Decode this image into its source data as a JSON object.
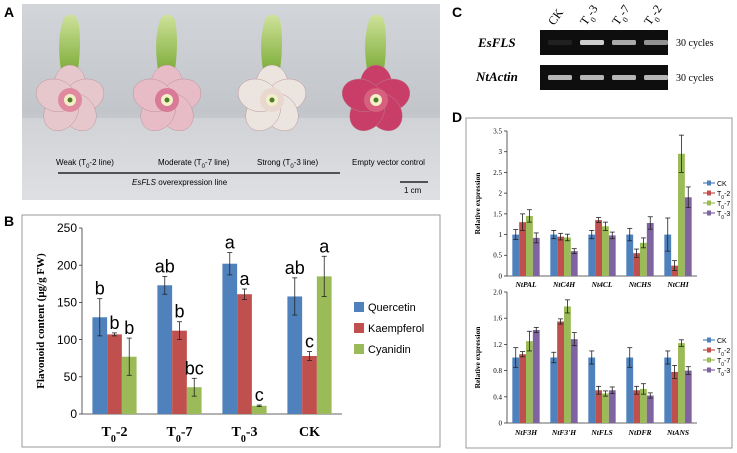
{
  "panel_labels": {
    "a": "A",
    "b": "B",
    "c": "C",
    "d": "D"
  },
  "panel_a": {
    "flowers": [
      {
        "label_pre": "Weak (T",
        "label_sub": "0",
        "label_post": "-2 line)",
        "fill": "#e6c8cc",
        "center": "#e08aa0"
      },
      {
        "label_pre": "Moderate (T",
        "label_sub": "0",
        "label_post": "-7 line)",
        "fill": "#e7bcc6",
        "center": "#d87a98"
      },
      {
        "label_pre": "Strong (T",
        "label_sub": "0",
        "label_post": "-3 line)",
        "fill": "#ece4de",
        "center": "#e9d8d0"
      },
      {
        "label_pre": "Empty vector control",
        "label_sub": "",
        "label_post": "",
        "fill": "#c83e68",
        "center": "#d7607f"
      }
    ],
    "line_caption_italic": "EsFLS",
    "line_caption_rest": " overexpression line",
    "scale_bar": "1 cm"
  },
  "panel_c": {
    "lanes": [
      {
        "pre": "CK",
        "sub": ""
      },
      {
        "pre": "T",
        "sub": "0",
        "post": "-3"
      },
      {
        "pre": "T",
        "sub": "0",
        "post": "-7"
      },
      {
        "pre": "T",
        "sub": "0",
        "post": "-2"
      }
    ],
    "rows": [
      {
        "gene": "EsFLS",
        "cycles": "30 cycles"
      },
      {
        "gene": "NtActin",
        "cycles": "30 cycles"
      }
    ]
  },
  "colors": {
    "blue": "#4f81bd",
    "red": "#c0504d",
    "green": "#9bbb59",
    "purple": "#8064a2"
  },
  "chart_data": [
    {
      "type": "bar",
      "panel": "B",
      "ylabel": "Flavonoid content (μg/g FW)",
      "ylim": [
        0,
        250
      ],
      "yticks": [
        0,
        50,
        100,
        150,
        200,
        250
      ],
      "categories": [
        {
          "pre": "T",
          "sub": "0",
          "post": "-2"
        },
        {
          "pre": "T",
          "sub": "0",
          "post": "-7"
        },
        {
          "pre": "T",
          "sub": "0",
          "post": "-3"
        },
        {
          "pre": "CK",
          "sub": "",
          "post": ""
        }
      ],
      "series": [
        {
          "name": "Quercetin",
          "color": "#4f81bd",
          "values": [
            130,
            173,
            202,
            158
          ],
          "errors": [
            25,
            12,
            15,
            25
          ],
          "letters": [
            "b",
            "ab",
            "a",
            "ab"
          ]
        },
        {
          "name": "Kaempferol",
          "color": "#c0504d",
          "values": [
            107,
            112,
            161,
            78
          ],
          "errors": [
            2,
            12,
            7,
            6
          ],
          "letters": [
            "b",
            "b",
            "a",
            "c"
          ]
        },
        {
          "name": "Cyanidin",
          "color": "#9bbb59",
          "values": [
            77,
            36,
            11,
            185
          ],
          "errors": [
            25,
            12,
            1,
            27
          ],
          "letters": [
            "b",
            "bc",
            "c",
            "a"
          ]
        }
      ],
      "legend_position": "right"
    },
    {
      "type": "bar",
      "panel": "D-top",
      "ylabel": "Relative expression",
      "ylim": [
        0,
        3.5
      ],
      "yticks": [
        "0",
        "0.5",
        "1",
        "1.5",
        "2",
        "2.5",
        "3",
        "3.5"
      ],
      "categories": [
        "NtPAL",
        "NtC4H",
        "Nt4CL",
        "NtCHS",
        "NtCHI"
      ],
      "series": [
        {
          "name": "CK",
          "color": "#4f81bd",
          "values": [
            1.0,
            1.0,
            1.0,
            1.0,
            1.0
          ],
          "errors": [
            0.12,
            0.1,
            0.1,
            0.15,
            0.4
          ]
        },
        {
          "name": "T0-2",
          "color": "#c0504d",
          "values": [
            1.3,
            0.95,
            1.35,
            0.55,
            0.25
          ],
          "errors": [
            0.2,
            0.08,
            0.06,
            0.1,
            0.12
          ]
        },
        {
          "name": "T0-7",
          "color": "#9bbb59",
          "values": [
            1.45,
            0.93,
            1.2,
            0.8,
            2.95
          ],
          "errors": [
            0.15,
            0.08,
            0.1,
            0.12,
            0.45
          ]
        },
        {
          "name": "T0-3",
          "color": "#8064a2",
          "values": [
            0.92,
            0.6,
            0.98,
            1.28,
            1.9
          ],
          "errors": [
            0.12,
            0.06,
            0.08,
            0.15,
            0.25
          ]
        }
      ],
      "legend": [
        {
          "pre": "CK",
          "sub": "",
          "post": ""
        },
        {
          "pre": "T",
          "sub": "0",
          "post": "-2"
        },
        {
          "pre": "T",
          "sub": "0",
          "post": "-7"
        },
        {
          "pre": "T",
          "sub": "0",
          "post": "-3"
        }
      ]
    },
    {
      "type": "bar",
      "panel": "D-bottom",
      "ylabel": "Relative expression",
      "ylim": [
        0,
        2.0
      ],
      "yticks": [
        "0",
        "0.4",
        "0.8",
        "1.2",
        "1.6",
        "2.0"
      ],
      "categories": [
        "NtF3H",
        "NtF3'H",
        "NtFLS",
        "NtDFR",
        "NtANS"
      ],
      "series": [
        {
          "name": "CK",
          "color": "#4f81bd",
          "values": [
            1.0,
            1.0,
            1.0,
            1.0,
            1.0
          ],
          "errors": [
            0.15,
            0.08,
            0.1,
            0.15,
            0.1
          ]
        },
        {
          "name": "T0-2",
          "color": "#c0504d",
          "values": [
            1.05,
            1.55,
            0.5,
            0.5,
            0.78
          ],
          "errors": [
            0.04,
            0.04,
            0.06,
            0.06,
            0.1
          ]
        },
        {
          "name": "T0-7",
          "color": "#9bbb59",
          "values": [
            1.25,
            1.78,
            0.45,
            0.52,
            1.22
          ],
          "errors": [
            0.15,
            0.1,
            0.04,
            0.08,
            0.05
          ]
        },
        {
          "name": "T0-3",
          "color": "#8064a2",
          "values": [
            1.42,
            1.28,
            0.5,
            0.42,
            0.8
          ],
          "errors": [
            0.04,
            0.1,
            0.05,
            0.04,
            0.06
          ]
        }
      ],
      "legend": [
        {
          "pre": "CK",
          "sub": "",
          "post": ""
        },
        {
          "pre": "T",
          "sub": "0",
          "post": "-2"
        },
        {
          "pre": "T",
          "sub": "0",
          "post": "-7"
        },
        {
          "pre": "T",
          "sub": "0",
          "post": "-3"
        }
      ]
    }
  ]
}
